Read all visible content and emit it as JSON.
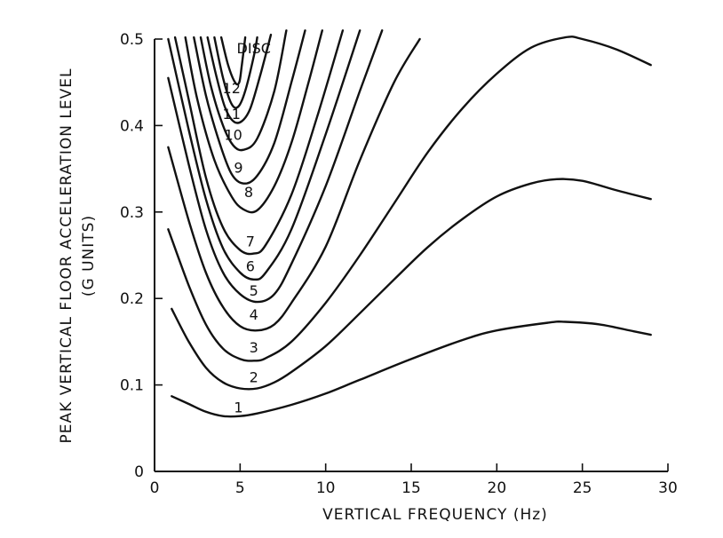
{
  "chart_data": {
    "type": "line",
    "xlabel": "VERTICAL FREQUENCY (Hz)",
    "ylabel_line1": "PEAK VERTICAL FLOOR ACCELERATION LEVEL",
    "ylabel_line2": "(G UNITS)",
    "xlim": [
      0,
      30
    ],
    "ylim": [
      0,
      0.5
    ],
    "x_ticks": [
      {
        "value": 0,
        "label": "0"
      },
      {
        "value": 5,
        "label": "5"
      },
      {
        "value": 10,
        "label": "10"
      },
      {
        "value": 15,
        "label": "15"
      },
      {
        "value": 20,
        "label": "20"
      },
      {
        "value": 25,
        "label": "25"
      },
      {
        "value": 30,
        "label": "30"
      }
    ],
    "y_ticks": [
      {
        "value": 0,
        "label": "0"
      },
      {
        "value": 0.1,
        "label": "0.1"
      },
      {
        "value": 0.2,
        "label": "0.2"
      },
      {
        "value": 0.3,
        "label": "0.3"
      },
      {
        "value": 0.4,
        "label": "0.4"
      },
      {
        "value": 0.5,
        "label": "0.5"
      }
    ],
    "grid": false,
    "series": [
      {
        "name": "1",
        "label_at": [
          4.9,
          0.073
        ],
        "points": [
          [
            1,
            0.087
          ],
          [
            2,
            0.078
          ],
          [
            3,
            0.069
          ],
          [
            4,
            0.064
          ],
          [
            5,
            0.064
          ],
          [
            6,
            0.067
          ],
          [
            8,
            0.077
          ],
          [
            10,
            0.09
          ],
          [
            12,
            0.106
          ],
          [
            15,
            0.13
          ],
          [
            18,
            0.152
          ],
          [
            20,
            0.163
          ],
          [
            23,
            0.172
          ],
          [
            24,
            0.173
          ],
          [
            26,
            0.17
          ],
          [
            28,
            0.162
          ],
          [
            29,
            0.158
          ]
        ]
      },
      {
        "name": "2",
        "label_at": [
          5.8,
          0.108
        ],
        "points": [
          [
            1,
            0.188
          ],
          [
            2,
            0.15
          ],
          [
            3,
            0.12
          ],
          [
            4,
            0.103
          ],
          [
            5,
            0.096
          ],
          [
            6,
            0.096
          ],
          [
            7,
            0.103
          ],
          [
            8,
            0.115
          ],
          [
            10,
            0.145
          ],
          [
            12,
            0.183
          ],
          [
            14,
            0.222
          ],
          [
            16,
            0.26
          ],
          [
            18,
            0.292
          ],
          [
            20,
            0.318
          ],
          [
            22,
            0.333
          ],
          [
            23.5,
            0.338
          ],
          [
            25,
            0.336
          ],
          [
            27,
            0.325
          ],
          [
            29,
            0.315
          ]
        ]
      },
      {
        "name": "3",
        "label_at": [
          5.8,
          0.142
        ],
        "points": [
          [
            0.8,
            0.28
          ],
          [
            2,
            0.215
          ],
          [
            3,
            0.17
          ],
          [
            4,
            0.142
          ],
          [
            5,
            0.13
          ],
          [
            5.8,
            0.128
          ],
          [
            6.5,
            0.131
          ],
          [
            8,
            0.15
          ],
          [
            10,
            0.195
          ],
          [
            12,
            0.25
          ],
          [
            14,
            0.31
          ],
          [
            16,
            0.37
          ],
          [
            18,
            0.42
          ],
          [
            20,
            0.46
          ],
          [
            22,
            0.49
          ],
          [
            24,
            0.502
          ],
          [
            25,
            0.5
          ],
          [
            27,
            0.488
          ],
          [
            29,
            0.47
          ]
        ]
      },
      {
        "name": "4",
        "label_at": [
          5.8,
          0.18
        ],
        "points": [
          [
            0.8,
            0.375
          ],
          [
            2,
            0.29
          ],
          [
            3,
            0.23
          ],
          [
            4,
            0.19
          ],
          [
            5,
            0.168
          ],
          [
            6,
            0.163
          ],
          [
            7,
            0.17
          ],
          [
            8,
            0.195
          ],
          [
            10,
            0.26
          ],
          [
            12,
            0.36
          ],
          [
            14,
            0.45
          ],
          [
            15.5,
            0.5
          ]
        ]
      },
      {
        "name": "5",
        "label_at": [
          5.8,
          0.208
        ],
        "points": [
          [
            0.8,
            0.455
          ],
          [
            2,
            0.355
          ],
          [
            3,
            0.28
          ],
          [
            4,
            0.23
          ],
          [
            5,
            0.205
          ],
          [
            6,
            0.196
          ],
          [
            7,
            0.205
          ],
          [
            8,
            0.24
          ],
          [
            10,
            0.33
          ],
          [
            12,
            0.44
          ],
          [
            13.3,
            0.51
          ]
        ]
      },
      {
        "name": "6",
        "label_at": [
          5.6,
          0.236
        ],
        "points": [
          [
            0.8,
            0.5
          ],
          [
            2,
            0.395
          ],
          [
            3,
            0.315
          ],
          [
            4,
            0.258
          ],
          [
            5,
            0.23
          ],
          [
            5.8,
            0.222
          ],
          [
            6.5,
            0.23
          ],
          [
            8,
            0.28
          ],
          [
            10,
            0.39
          ],
          [
            12,
            0.51
          ]
        ]
      },
      {
        "name": "7",
        "label_at": [
          5.6,
          0.265
        ],
        "points": [
          [
            1.2,
            0.502
          ],
          [
            2,
            0.43
          ],
          [
            3,
            0.34
          ],
          [
            4,
            0.282
          ],
          [
            5,
            0.256
          ],
          [
            5.8,
            0.252
          ],
          [
            6.5,
            0.262
          ],
          [
            8,
            0.32
          ],
          [
            9.5,
            0.41
          ],
          [
            11,
            0.51
          ]
        ]
      },
      {
        "name": "8",
        "label_at": [
          5.5,
          0.322
        ],
        "points": [
          [
            1.8,
            0.502
          ],
          [
            2.5,
            0.43
          ],
          [
            3.5,
            0.36
          ],
          [
            4.5,
            0.318
          ],
          [
            5.2,
            0.303
          ],
          [
            6,
            0.302
          ],
          [
            7,
            0.33
          ],
          [
            8,
            0.38
          ],
          [
            9,
            0.45
          ],
          [
            9.8,
            0.51
          ]
        ]
      },
      {
        "name": "9",
        "label_at": [
          4.9,
          0.35
        ],
        "points": [
          [
            2.3,
            0.502
          ],
          [
            3,
            0.435
          ],
          [
            3.8,
            0.38
          ],
          [
            4.5,
            0.344
          ],
          [
            5.2,
            0.333
          ],
          [
            6,
            0.342
          ],
          [
            7,
            0.38
          ],
          [
            8,
            0.45
          ],
          [
            8.8,
            0.51
          ]
        ]
      },
      {
        "name": "10",
        "label_at": [
          4.6,
          0.388
        ],
        "points": [
          [
            2.7,
            0.502
          ],
          [
            3.3,
            0.445
          ],
          [
            4,
            0.4
          ],
          [
            4.6,
            0.377
          ],
          [
            5.2,
            0.372
          ],
          [
            6,
            0.385
          ],
          [
            7,
            0.44
          ],
          [
            7.7,
            0.51
          ]
        ]
      },
      {
        "name": "11",
        "label_at": [
          4.5,
          0.412
        ],
        "points": [
          [
            3.1,
            0.502
          ],
          [
            3.6,
            0.458
          ],
          [
            4.1,
            0.422
          ],
          [
            4.6,
            0.405
          ],
          [
            5.1,
            0.405
          ],
          [
            5.6,
            0.42
          ],
          [
            6.2,
            0.46
          ],
          [
            6.8,
            0.505
          ]
        ]
      },
      {
        "name": "12",
        "label_at": [
          4.5,
          0.442
        ],
        "points": [
          [
            3.5,
            0.502
          ],
          [
            4,
            0.455
          ],
          [
            4.5,
            0.425
          ],
          [
            4.9,
            0.422
          ],
          [
            5.3,
            0.44
          ],
          [
            5.8,
            0.48
          ],
          [
            6.0,
            0.502
          ]
        ]
      },
      {
        "name": "DISC",
        "label_at": [
          5.8,
          0.488
        ],
        "points": [
          [
            3.9,
            0.502
          ],
          [
            4.3,
            0.47
          ],
          [
            4.7,
            0.45
          ],
          [
            4.95,
            0.45
          ],
          [
            5.1,
            0.47
          ],
          [
            5.3,
            0.502
          ]
        ]
      }
    ]
  }
}
